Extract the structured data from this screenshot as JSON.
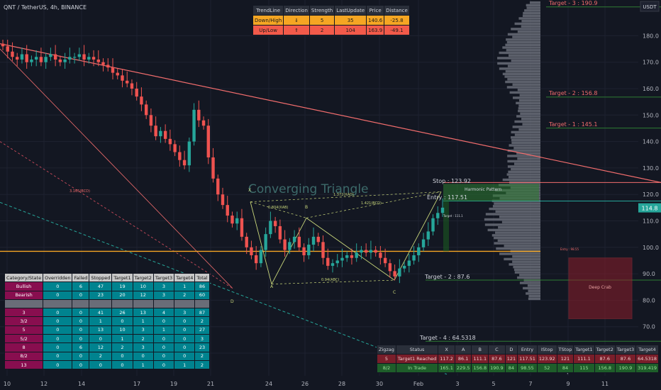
{
  "header": {
    "symbol": "QNT / TetherUS, 4h, BINANCE"
  },
  "chart_data": {
    "type": "candlestick",
    "title": "QNT / TetherUS, 4h, BINANCE",
    "ylim": [
      52,
      193
    ],
    "y_ticks": [
      "60.0",
      "70.0",
      "80.0",
      "90.0",
      "100.0",
      "110.0",
      "120.0",
      "130.0",
      "140.0",
      "150.0",
      "160.0",
      "170.0",
      "180.0"
    ],
    "y_values": [
      60,
      70,
      80,
      90,
      100,
      110,
      120,
      130,
      140,
      150,
      160,
      170,
      180
    ],
    "x_ticks": [
      "10",
      "12",
      "14",
      "17",
      "19",
      "21",
      "24",
      "26",
      "28",
      "30",
      "Feb",
      "3",
      "5",
      "7",
      "9",
      "11"
    ],
    "currency_label": "USDT",
    "last_price": "114.8",
    "closes": [
      176,
      174,
      172,
      171,
      173,
      170,
      171,
      172,
      170,
      172,
      173,
      171,
      170,
      171,
      172,
      172,
      173,
      171,
      172,
      171,
      170,
      169,
      168,
      166,
      165,
      163,
      162,
      160,
      157,
      154,
      150,
      146,
      142,
      144,
      141,
      139,
      136,
      133,
      131,
      140,
      152,
      148,
      146,
      134,
      126,
      120,
      116,
      112,
      109,
      111,
      104,
      100,
      97,
      94,
      99,
      105,
      110,
      108,
      103,
      99,
      102,
      104,
      100,
      97,
      101,
      104,
      102,
      96,
      93,
      94,
      95,
      96,
      97,
      96,
      98,
      99,
      98,
      99,
      98,
      96,
      94,
      91,
      89,
      92,
      93,
      95,
      97,
      100,
      103,
      106,
      111,
      113,
      115
    ],
    "events": {
      "day_labels": [
        "10",
        "12",
        "14",
        "17",
        "19",
        "21",
        "24",
        "26",
        "28",
        "30",
        "Feb",
        "3",
        "5",
        "7",
        "9",
        "11"
      ],
      "pattern_name": "Converging Triangle",
      "harmonic_name": "Harmonic Pattern",
      "point_labels": [
        "X",
        "A",
        "B",
        "C",
        "D"
      ],
      "ratio_labels": [
        "0.804(XAB)",
        "1.372(XAD)",
        "1.421(BCD)",
        "0.94(ABC)",
        "3.165(BCD)"
      ],
      "targets": [
        {
          "label": "Target - 3 : 190.9",
          "price": 190.9
        },
        {
          "label": "Target - 2 : 156.8",
          "price": 156.8
        },
        {
          "label": "Target - 1 : 145.1",
          "price": 145.1
        },
        {
          "label": "Target - 2 : 87.6",
          "price": 87.6
        },
        {
          "label": "Target - 4 : 64.5318",
          "price": 64.5318
        }
      ],
      "stop_label": "Stop : 123.92",
      "entry_label": "Entry : 117.51",
      "stop_bottom_label": "Stop : 52",
      "deep_crab_label": "Deep Crab",
      "small_labels": [
        "Target : 111.1",
        "Entry : 98.55"
      ]
    }
  },
  "trend_table": {
    "headers": [
      "TrendLine",
      "Direction",
      "Strength",
      "LastUpdate",
      "Price",
      "Distance"
    ],
    "rows": [
      {
        "cells": [
          "Down/High",
          "⇓",
          "5",
          "35",
          "140.6",
          "-25.8"
        ],
        "bg": "#f5a623"
      },
      {
        "cells": [
          "Up/Low",
          "⇑",
          "2",
          "104",
          "163.9",
          "-49.1"
        ],
        "bg": "#f25a4a"
      }
    ]
  },
  "category_table": {
    "headers": [
      "Category/State",
      "Overridden",
      "Failed",
      "Stopped",
      "Target1",
      "Target2",
      "Target3",
      "Target4",
      "Total"
    ],
    "rows": [
      [
        "Bullish",
        "0",
        "6",
        "47",
        "19",
        "10",
        "3",
        "1",
        "86"
      ],
      [
        "Bearish",
        "0",
        "0",
        "23",
        "20",
        "12",
        "3",
        "2",
        "60"
      ],
      [
        "",
        "",
        "",
        "",
        "",
        "",
        "",
        "",
        ""
      ],
      [
        "3",
        "0",
        "0",
        "41",
        "26",
        "13",
        "4",
        "3",
        "87"
      ],
      [
        "3/2",
        "0",
        "0",
        "1",
        "0",
        "1",
        "0",
        "0",
        "2"
      ],
      [
        "5",
        "0",
        "0",
        "13",
        "10",
        "3",
        "1",
        "0",
        "27"
      ],
      [
        "5/2",
        "0",
        "0",
        "0",
        "1",
        "2",
        "0",
        "0",
        "3"
      ],
      [
        "8",
        "0",
        "6",
        "12",
        "2",
        "3",
        "0",
        "0",
        "23"
      ],
      [
        "8/2",
        "0",
        "0",
        "2",
        "0",
        "0",
        "0",
        "0",
        "2"
      ],
      [
        "13",
        "0",
        "0",
        "0",
        "0",
        "1",
        "0",
        "1",
        "2"
      ]
    ]
  },
  "zigzag_table": {
    "headers": [
      "Zigzag",
      "Status",
      "X",
      "A",
      "B",
      "C",
      "D",
      "Entry",
      "IStop",
      "TStop",
      "Target1",
      "Target2",
      "Target3",
      "Target4"
    ],
    "rows": [
      [
        "5",
        "Target1 Reached",
        "117.2",
        "86.1",
        "111.1",
        "87.6",
        "121",
        "117.51",
        "123.92",
        "121",
        "111.1",
        "87.6",
        "87.6",
        "64.5318"
      ],
      [
        "8/2",
        "In Trade",
        "165.1",
        "229.5",
        "156.8",
        "190.9",
        "84",
        "98.55",
        "52",
        "84",
        "115",
        "156.8",
        "190.9",
        "319.419"
      ]
    ]
  }
}
